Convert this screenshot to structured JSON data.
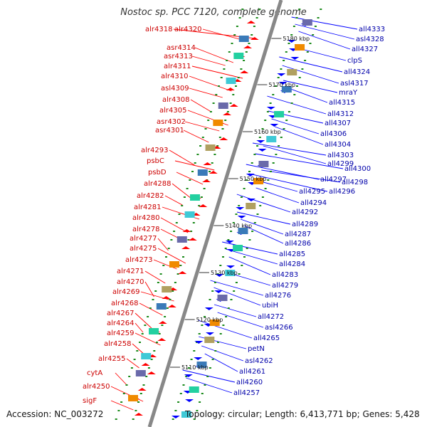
{
  "title": "Nostoc sp. PCC 7120, complete genome",
  "accession": "Accession: NC_003272",
  "summary": "Topology: circular; Length: 6,413,771 bp; Genes: 5,428",
  "colors": {
    "forward": "#ff0000",
    "reverse": "#0000ff",
    "spine": "#888888",
    "tick": "#1a8a1a"
  },
  "scale": [
    "5180 kbp",
    "5170 kbp",
    "5160 kbp",
    "5150 kbp",
    "5140 kbp",
    "5130 kbp",
    "5120 kbp",
    "5110 kbp"
  ],
  "forward_genes": [
    "alr4318",
    "alr4320",
    "asr4314",
    "asr4313",
    "alr4311",
    "alr4310",
    "asl4309",
    "alr4308",
    "alr4305",
    "asr4302",
    "asr4301",
    "alr4293",
    "psbC",
    "psbD",
    "alr4288",
    "alr4282",
    "alr4281",
    "alr4280",
    "alr4278",
    "alr4277",
    "alr4275",
    "alr4273",
    "alr4271",
    "alr4270",
    "alr4269",
    "alr4268",
    "alr4267",
    "alr4264",
    "alr4259",
    "alr4258",
    "alr4255",
    "cytA",
    "alr4250",
    "sigF"
  ],
  "reverse_genes": [
    "all4333",
    "asl4328",
    "all4327",
    "clpS",
    "all4324",
    "asl4317",
    "mraY",
    "all4315",
    "all4312",
    "all4307",
    "all4306",
    "all4304",
    "all4303",
    "all4300",
    "all4299",
    "all4298",
    "all4297",
    "all4296",
    "all4295",
    "all4294",
    "all4292",
    "all4289",
    "all4287",
    "all4286",
    "all4285",
    "all4284",
    "all4283",
    "all4279",
    "all4276",
    "ubiH",
    "all4272",
    "asl4266",
    "all4265",
    "petN",
    "asl4262",
    "all4261",
    "all4260",
    "all4257"
  ]
}
